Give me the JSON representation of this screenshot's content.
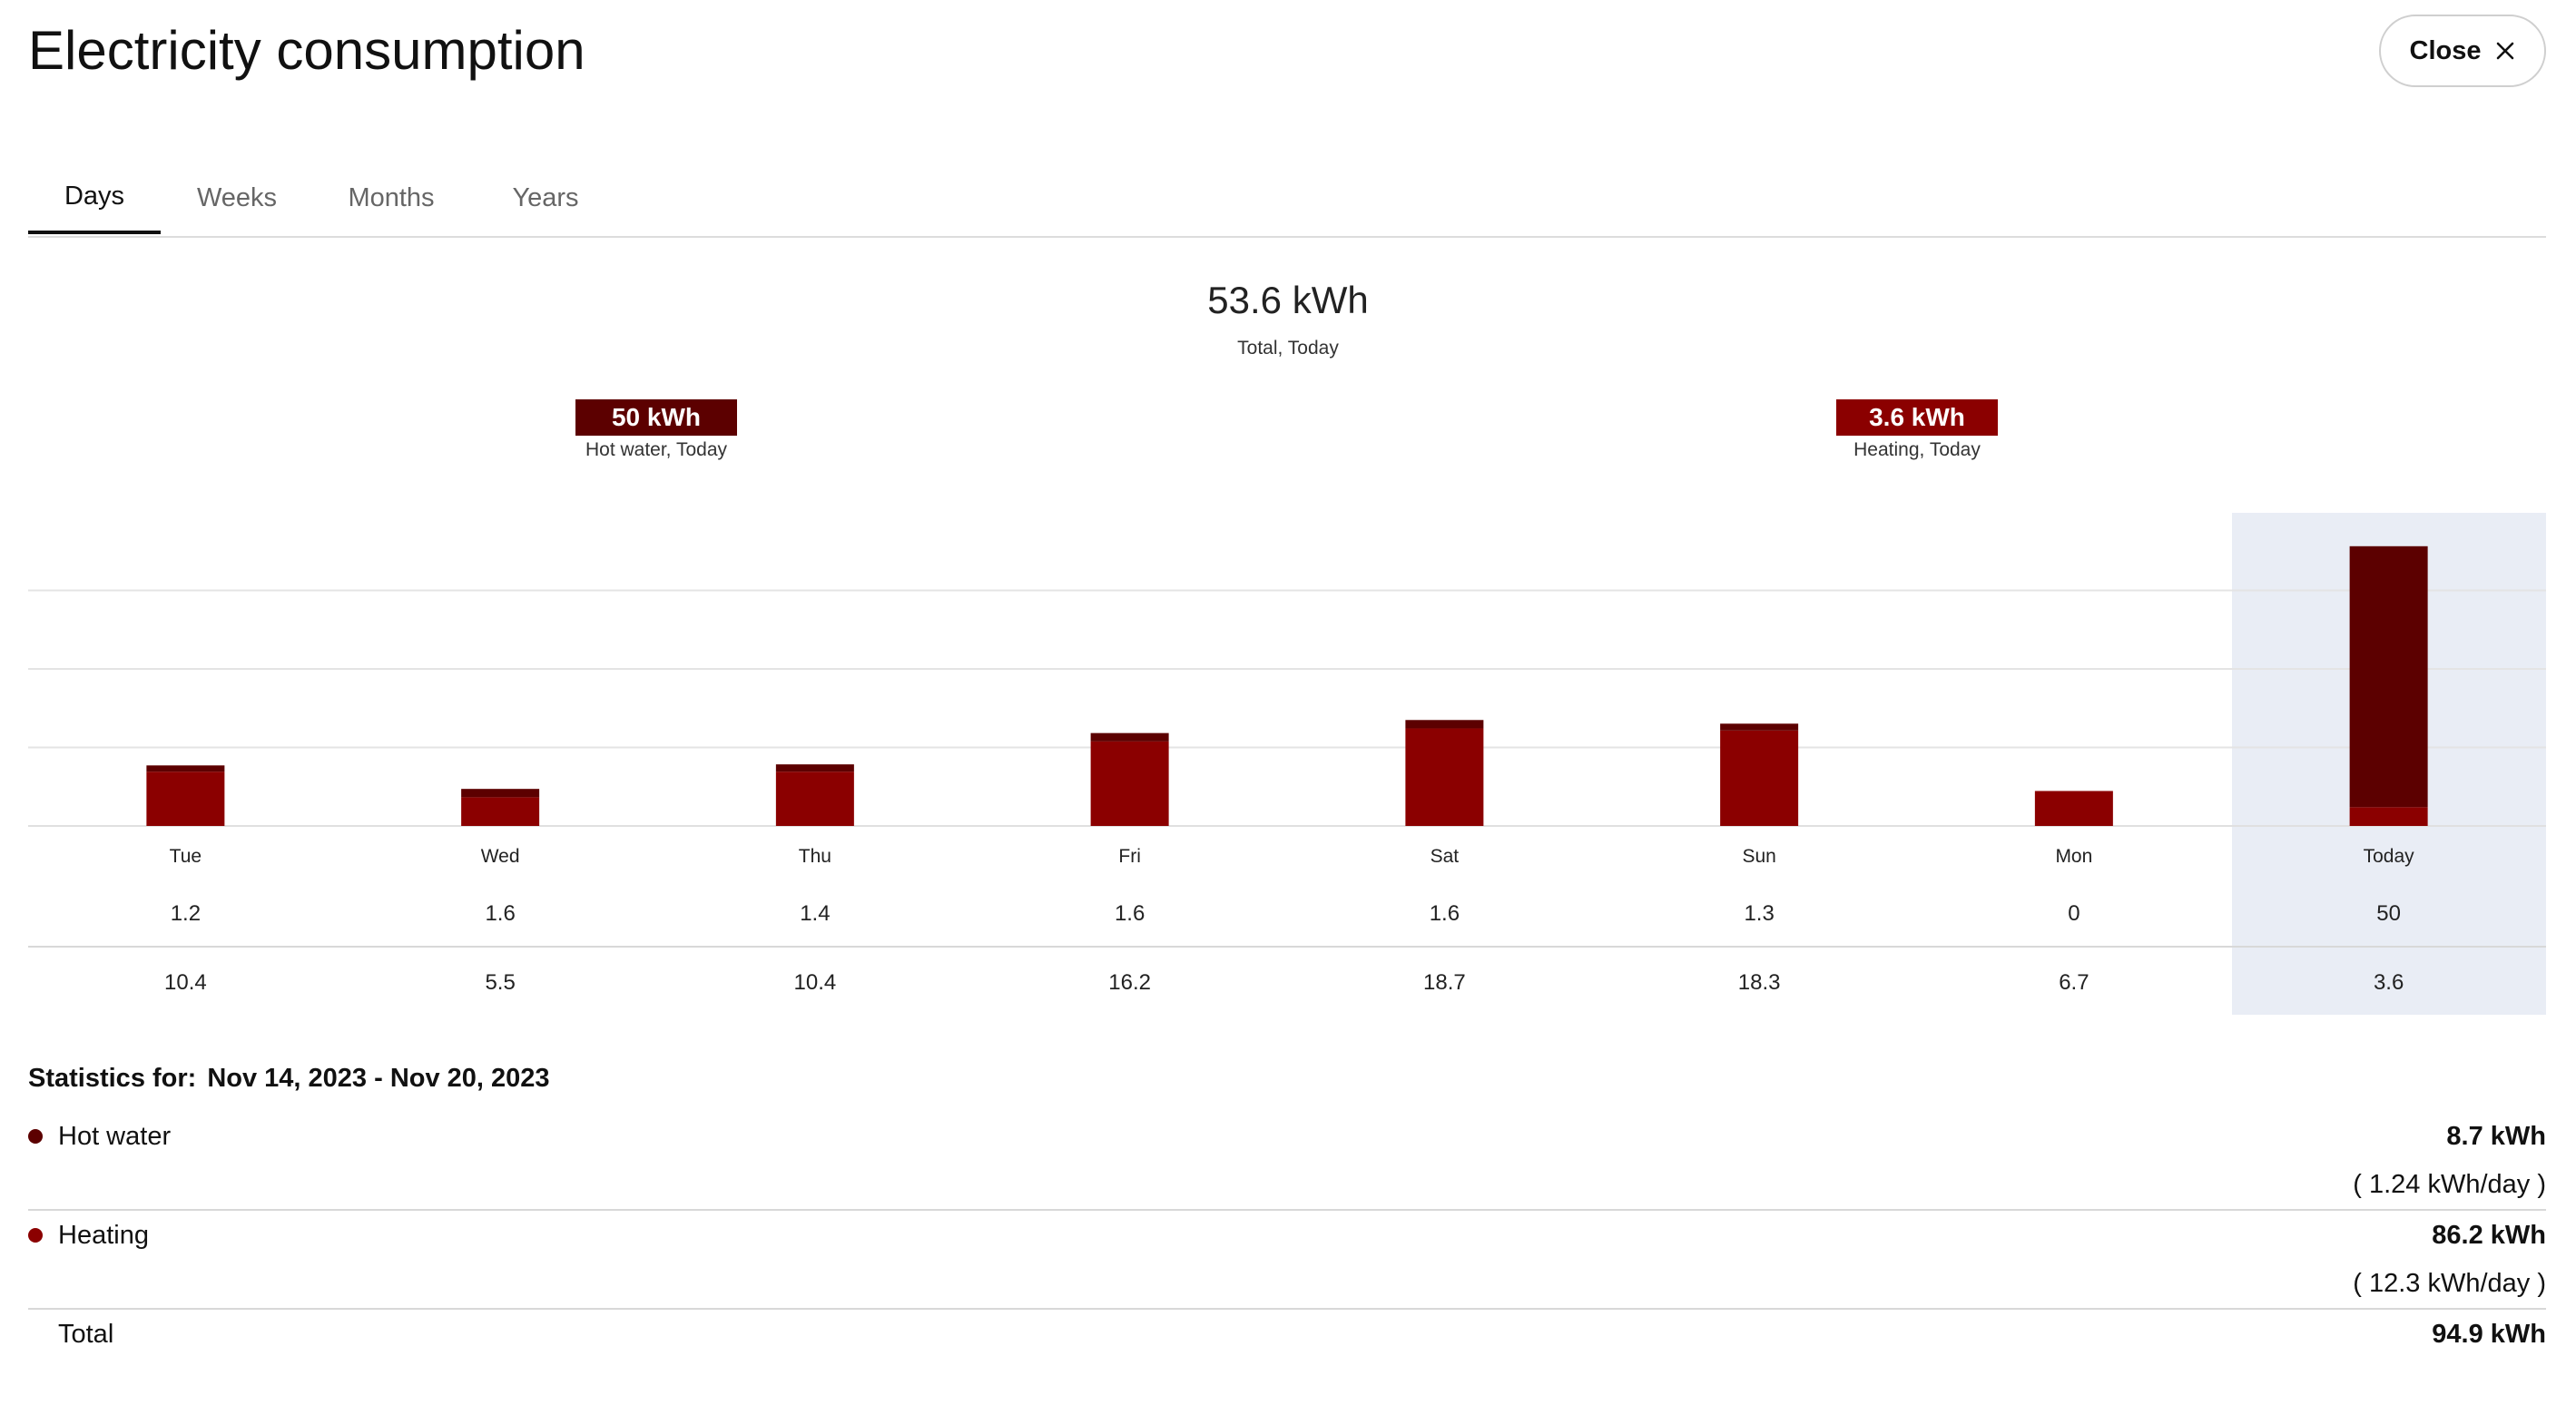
{
  "header": {
    "title": "Electricity consumption",
    "close_label": "Close"
  },
  "tabs": [
    {
      "label": "Days",
      "active": true
    },
    {
      "label": "Weeks",
      "active": false
    },
    {
      "label": "Months",
      "active": false
    },
    {
      "label": "Years",
      "active": false
    }
  ],
  "summary": {
    "total_value": "53.6 kWh",
    "total_label": "Total, Today",
    "hot_water_value": "50 kWh",
    "hot_water_label": "Hot water, Today",
    "heating_value": "3.6 kWh",
    "heating_label": "Heating, Today"
  },
  "colors": {
    "hot_water": "#5c0000",
    "heating": "#8b0000",
    "today_band": "#e9edf5"
  },
  "chart_data": {
    "type": "bar",
    "stacked": true,
    "categories": [
      "Tue",
      "Wed",
      "Thu",
      "Fri",
      "Sat",
      "Sun",
      "Mon",
      "Today"
    ],
    "series": [
      {
        "name": "Hot water",
        "values": [
          1.2,
          1.6,
          1.4,
          1.6,
          1.6,
          1.3,
          0,
          50
        ]
      },
      {
        "name": "Heating",
        "values": [
          10.4,
          5.5,
          10.4,
          16.2,
          18.7,
          18.3,
          6.7,
          3.6
        ]
      }
    ],
    "ylim": [
      0,
      60
    ],
    "grid": true,
    "highlight_category": "Today"
  },
  "statistics": {
    "title": "Statistics for:",
    "range": "Nov 14, 2023 - Nov 20, 2023",
    "rows": [
      {
        "name": "Hot water",
        "value": "8.7 kWh",
        "rate": "( 1.24 kWh/day )"
      },
      {
        "name": "Heating",
        "value": "86.2 kWh",
        "rate": "( 12.3 kWh/day )"
      }
    ],
    "total": {
      "name": "Total",
      "value": "94.9 kWh"
    }
  }
}
